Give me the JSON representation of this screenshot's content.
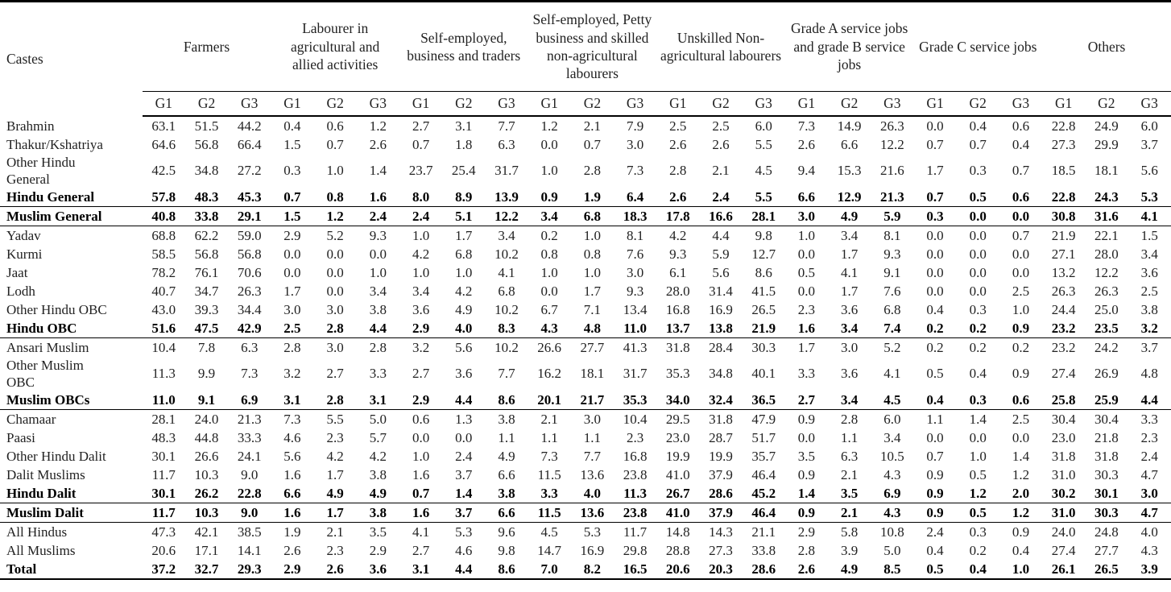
{
  "table": {
    "corner_label": "Castes",
    "groups": [
      "Farmers",
      "Labourer in agricultural and allied activities",
      "Self-employed, business and traders",
      "Self-employed, Petty business and skilled non-agricultural labourers",
      "Unskilled Non-agricultural labourers",
      "Grade A service jobs and grade B service jobs",
      "Grade C service jobs",
      "Others"
    ],
    "subcolumns": [
      "G1",
      "G2",
      "G3"
    ],
    "rows": [
      {
        "caste": "Brahmin",
        "bold": false,
        "sep_after": false,
        "values": [
          "63.1",
          "51.5",
          "44.2",
          "0.4",
          "0.6",
          "1.2",
          "2.7",
          "3.1",
          "7.7",
          "1.2",
          "2.1",
          "7.9",
          "2.5",
          "2.5",
          "6.0",
          "7.3",
          "14.9",
          "26.3",
          "0.0",
          "0.4",
          "0.6",
          "22.8",
          "24.9",
          "6.0"
        ]
      },
      {
        "caste": "Thakur/Kshatriya",
        "bold": false,
        "sep_after": false,
        "values": [
          "64.6",
          "56.8",
          "66.4",
          "1.5",
          "0.7",
          "2.6",
          "0.7",
          "1.8",
          "6.3",
          "0.0",
          "0.7",
          "3.0",
          "2.6",
          "2.6",
          "5.5",
          "2.6",
          "6.6",
          "12.2",
          "0.7",
          "0.7",
          "0.4",
          "27.3",
          "29.9",
          "3.7"
        ]
      },
      {
        "caste": "Other Hindu General",
        "bold": false,
        "sep_after": false,
        "values": [
          "42.5",
          "34.8",
          "27.2",
          "0.3",
          "1.0",
          "1.4",
          "23.7",
          "25.4",
          "31.7",
          "1.0",
          "2.8",
          "7.3",
          "2.8",
          "2.1",
          "4.5",
          "9.4",
          "15.3",
          "21.6",
          "1.7",
          "0.3",
          "0.7",
          "18.5",
          "18.1",
          "5.6"
        ]
      },
      {
        "caste": "Hindu General",
        "bold": true,
        "sep_after": true,
        "values": [
          "57.8",
          "48.3",
          "45.3",
          "0.7",
          "0.8",
          "1.6",
          "8.0",
          "8.9",
          "13.9",
          "0.9",
          "1.9",
          "6.4",
          "2.6",
          "2.4",
          "5.5",
          "6.6",
          "12.9",
          "21.3",
          "0.7",
          "0.5",
          "0.6",
          "22.8",
          "24.3",
          "5.3"
        ]
      },
      {
        "caste": "Muslim General",
        "bold": true,
        "sep_after": true,
        "values": [
          "40.8",
          "33.8",
          "29.1",
          "1.5",
          "1.2",
          "2.4",
          "2.4",
          "5.1",
          "12.2",
          "3.4",
          "6.8",
          "18.3",
          "17.8",
          "16.6",
          "28.1",
          "3.0",
          "4.9",
          "5.9",
          "0.3",
          "0.0",
          "0.0",
          "30.8",
          "31.6",
          "4.1"
        ]
      },
      {
        "caste": "Yadav",
        "bold": false,
        "sep_after": false,
        "values": [
          "68.8",
          "62.2",
          "59.0",
          "2.9",
          "5.2",
          "9.3",
          "1.0",
          "1.7",
          "3.4",
          "0.2",
          "1.0",
          "8.1",
          "4.2",
          "4.4",
          "9.8",
          "1.0",
          "3.4",
          "8.1",
          "0.0",
          "0.0",
          "0.7",
          "21.9",
          "22.1",
          "1.5"
        ]
      },
      {
        "caste": "Kurmi",
        "bold": false,
        "sep_after": false,
        "values": [
          "58.5",
          "56.8",
          "56.8",
          "0.0",
          "0.0",
          "0.0",
          "4.2",
          "6.8",
          "10.2",
          "0.8",
          "0.8",
          "7.6",
          "9.3",
          "5.9",
          "12.7",
          "0.0",
          "1.7",
          "9.3",
          "0.0",
          "0.0",
          "0.0",
          "27.1",
          "28.0",
          "3.4"
        ]
      },
      {
        "caste": "Jaat",
        "bold": false,
        "sep_after": false,
        "values": [
          "78.2",
          "76.1",
          "70.6",
          "0.0",
          "0.0",
          "1.0",
          "1.0",
          "1.0",
          "4.1",
          "1.0",
          "1.0",
          "3.0",
          "6.1",
          "5.6",
          "8.6",
          "0.5",
          "4.1",
          "9.1",
          "0.0",
          "0.0",
          "0.0",
          "13.2",
          "12.2",
          "3.6"
        ]
      },
      {
        "caste": "Lodh",
        "bold": false,
        "sep_after": false,
        "values": [
          "40.7",
          "34.7",
          "26.3",
          "1.7",
          "0.0",
          "3.4",
          "3.4",
          "4.2",
          "6.8",
          "0.0",
          "1.7",
          "9.3",
          "28.0",
          "31.4",
          "41.5",
          "0.0",
          "1.7",
          "7.6",
          "0.0",
          "0.0",
          "2.5",
          "26.3",
          "26.3",
          "2.5"
        ]
      },
      {
        "caste": "Other Hindu OBC",
        "bold": false,
        "sep_after": false,
        "values": [
          "43.0",
          "39.3",
          "34.4",
          "3.0",
          "3.0",
          "3.8",
          "3.6",
          "4.9",
          "10.2",
          "6.7",
          "7.1",
          "13.4",
          "16.8",
          "16.9",
          "26.5",
          "2.3",
          "3.6",
          "6.8",
          "0.4",
          "0.3",
          "1.0",
          "24.4",
          "25.0",
          "3.8"
        ]
      },
      {
        "caste": "Hindu OBC",
        "bold": true,
        "sep_after": true,
        "values": [
          "51.6",
          "47.5",
          "42.9",
          "2.5",
          "2.8",
          "4.4",
          "2.9",
          "4.0",
          "8.3",
          "4.3",
          "4.8",
          "11.0",
          "13.7",
          "13.8",
          "21.9",
          "1.6",
          "3.4",
          "7.4",
          "0.2",
          "0.2",
          "0.9",
          "23.2",
          "23.5",
          "3.2"
        ]
      },
      {
        "caste": "Ansari Muslim",
        "bold": false,
        "sep_after": false,
        "values": [
          "10.4",
          "7.8",
          "6.3",
          "2.8",
          "3.0",
          "2.8",
          "3.2",
          "5.6",
          "10.2",
          "26.6",
          "27.7",
          "41.3",
          "31.8",
          "28.4",
          "30.3",
          "1.7",
          "3.0",
          "5.2",
          "0.2",
          "0.2",
          "0.2",
          "23.2",
          "24.2",
          "3.7"
        ]
      },
      {
        "caste": "Other Muslim OBC",
        "bold": false,
        "sep_after": false,
        "values": [
          "11.3",
          "9.9",
          "7.3",
          "3.2",
          "2.7",
          "3.3",
          "2.7",
          "3.6",
          "7.7",
          "16.2",
          "18.1",
          "31.7",
          "35.3",
          "34.8",
          "40.1",
          "3.3",
          "3.6",
          "4.1",
          "0.5",
          "0.4",
          "0.9",
          "27.4",
          "26.9",
          "4.8"
        ]
      },
      {
        "caste": "Muslim OBCs",
        "bold": true,
        "sep_after": true,
        "values": [
          "11.0",
          "9.1",
          "6.9",
          "3.1",
          "2.8",
          "3.1",
          "2.9",
          "4.4",
          "8.6",
          "20.1",
          "21.7",
          "35.3",
          "34.0",
          "32.4",
          "36.5",
          "2.7",
          "3.4",
          "4.5",
          "0.4",
          "0.3",
          "0.6",
          "25.8",
          "25.9",
          "4.4"
        ]
      },
      {
        "caste": "Chamaar",
        "bold": false,
        "sep_after": false,
        "values": [
          "28.1",
          "24.0",
          "21.3",
          "7.3",
          "5.5",
          "5.0",
          "0.6",
          "1.3",
          "3.8",
          "2.1",
          "3.0",
          "10.4",
          "29.5",
          "31.8",
          "47.9",
          "0.9",
          "2.8",
          "6.0",
          "1.1",
          "1.4",
          "2.5",
          "30.4",
          "30.4",
          "3.3"
        ]
      },
      {
        "caste": "Paasi",
        "bold": false,
        "sep_after": false,
        "values": [
          "48.3",
          "44.8",
          "33.3",
          "4.6",
          "2.3",
          "5.7",
          "0.0",
          "0.0",
          "1.1",
          "1.1",
          "1.1",
          "2.3",
          "23.0",
          "28.7",
          "51.7",
          "0.0",
          "1.1",
          "3.4",
          "0.0",
          "0.0",
          "0.0",
          "23.0",
          "21.8",
          "2.3"
        ]
      },
      {
        "caste": "Other Hindu Dalit",
        "bold": false,
        "sep_after": false,
        "values": [
          "30.1",
          "26.6",
          "24.1",
          "5.6",
          "4.2",
          "4.2",
          "1.0",
          "2.4",
          "4.9",
          "7.3",
          "7.7",
          "16.8",
          "19.9",
          "19.9",
          "35.7",
          "3.5",
          "6.3",
          "10.5",
          "0.7",
          "1.0",
          "1.4",
          "31.8",
          "31.8",
          "2.4"
        ]
      },
      {
        "caste": "Dalit Muslims",
        "bold": false,
        "sep_after": false,
        "values": [
          "11.7",
          "10.3",
          "9.0",
          "1.6",
          "1.7",
          "3.8",
          "1.6",
          "3.7",
          "6.6",
          "11.5",
          "13.6",
          "23.8",
          "41.0",
          "37.9",
          "46.4",
          "0.9",
          "2.1",
          "4.3",
          "0.9",
          "0.5",
          "1.2",
          "31.0",
          "30.3",
          "4.7"
        ]
      },
      {
        "caste": "Hindu Dalit",
        "bold": true,
        "sep_after": true,
        "values": [
          "30.1",
          "26.2",
          "22.8",
          "6.6",
          "4.9",
          "4.9",
          "0.7",
          "1.4",
          "3.8",
          "3.3",
          "4.0",
          "11.3",
          "26.7",
          "28.6",
          "45.2",
          "1.4",
          "3.5",
          "6.9",
          "0.9",
          "1.2",
          "2.0",
          "30.2",
          "30.1",
          "3.0"
        ]
      },
      {
        "caste": "Muslim Dalit",
        "bold": true,
        "sep_after": true,
        "values": [
          "11.7",
          "10.3",
          "9.0",
          "1.6",
          "1.7",
          "3.8",
          "1.6",
          "3.7",
          "6.6",
          "11.5",
          "13.6",
          "23.8",
          "41.0",
          "37.9",
          "46.4",
          "0.9",
          "2.1",
          "4.3",
          "0.9",
          "0.5",
          "1.2",
          "31.0",
          "30.3",
          "4.7"
        ]
      },
      {
        "caste": "All Hindus",
        "bold": false,
        "sep_after": false,
        "values": [
          "47.3",
          "42.1",
          "38.5",
          "1.9",
          "2.1",
          "3.5",
          "4.1",
          "5.3",
          "9.6",
          "4.5",
          "5.3",
          "11.7",
          "14.8",
          "14.3",
          "21.1",
          "2.9",
          "5.8",
          "10.8",
          "2.4",
          "0.3",
          "0.9",
          "24.0",
          "24.8",
          "4.0"
        ]
      },
      {
        "caste": "All Muslims",
        "bold": false,
        "sep_after": false,
        "values": [
          "20.6",
          "17.1",
          "14.1",
          "2.6",
          "2.3",
          "2.9",
          "2.7",
          "4.6",
          "9.8",
          "14.7",
          "16.9",
          "29.8",
          "28.8",
          "27.3",
          "33.8",
          "2.8",
          "3.9",
          "5.0",
          "0.4",
          "0.2",
          "0.4",
          "27.4",
          "27.7",
          "4.3"
        ]
      },
      {
        "caste": "Total",
        "bold": true,
        "sep_after": false,
        "values": [
          "37.2",
          "32.7",
          "29.3",
          "2.9",
          "2.6",
          "3.6",
          "3.1",
          "4.4",
          "8.6",
          "7.0",
          "8.2",
          "16.5",
          "20.6",
          "20.3",
          "28.6",
          "2.6",
          "4.9",
          "8.5",
          "0.5",
          "0.4",
          "1.0",
          "26.1",
          "26.5",
          "3.9"
        ]
      }
    ]
  }
}
